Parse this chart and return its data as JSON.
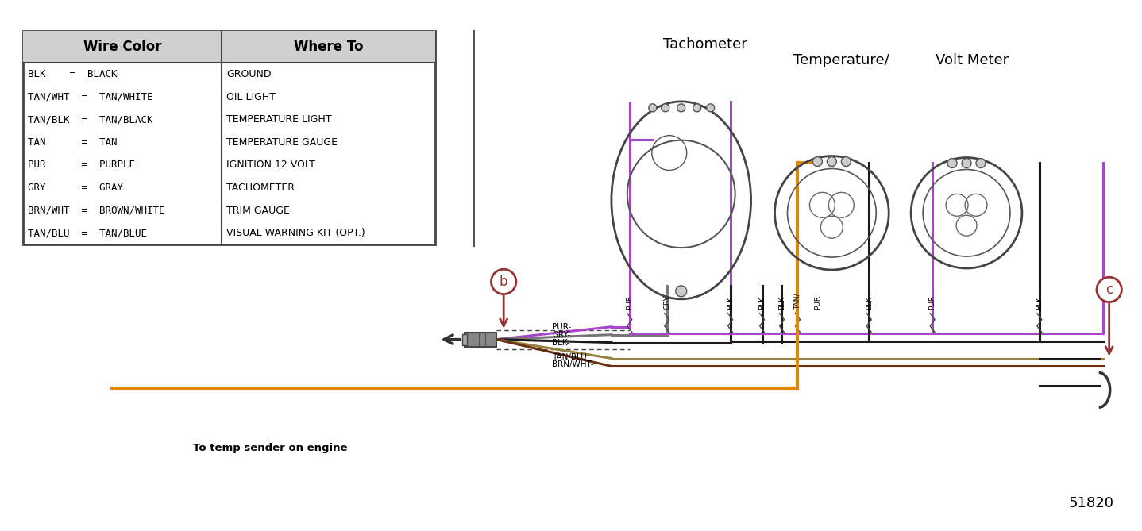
{
  "bg_color": "#ffffff",
  "table_col1_header": "Wire Color",
  "table_col2_header": "Where To",
  "table_rows_col1": [
    "BLK    =  BLACK",
    "TAN/WHT  =  TAN/WHITE",
    "TAN/BLK  =  TAN/BLACK",
    "TAN      =  TAN",
    "PUR      =  PURPLE",
    "GRY      =  GRAY",
    "BRN/WHT  =  BROWN/WHITE",
    "TAN/BLU  =  TAN/BLUE"
  ],
  "table_rows_col2": [
    "GROUND",
    "OIL LIGHT",
    "TEMPERATURE LIGHT",
    "TEMPERATURE GAUGE",
    "IGNITION 12 VOLT",
    "TACHOMETER",
    "TRIM GAUGE",
    "VISUAL WARNING KIT (OPT.)"
  ],
  "title_tachometer": "Tachometer",
  "title_temperature": "Temperature/",
  "title_voltmeter": "Volt Meter",
  "label_b": "b",
  "label_c": "c",
  "note": "To temp sender on engine",
  "part_number": "51820",
  "purple": "#aa44cc",
  "gray": "#777777",
  "black": "#1a1a1a",
  "orange": "#e08800",
  "tan_blu": "#9a8040",
  "brn_wht": "#6B3010",
  "wire_dark": "#333333"
}
